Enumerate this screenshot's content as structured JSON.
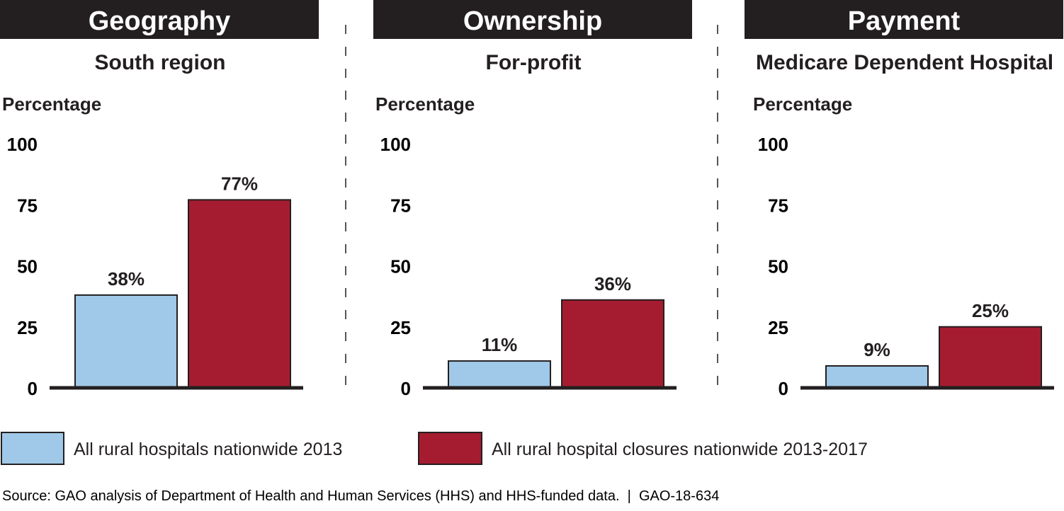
{
  "chart_data": [
    {
      "type": "bar",
      "title": "Geography",
      "subtitle": "South region",
      "ylabel": "Percentage",
      "ylim": [
        0,
        100
      ],
      "yticks": [
        0,
        25,
        50,
        75,
        100
      ],
      "series": [
        {
          "name": "All rural hospitals nationwide 2013",
          "values": [
            38
          ],
          "labels": [
            "38%"
          ]
        },
        {
          "name": "All rural hospital closures nationwide 2013-2017",
          "values": [
            77
          ],
          "labels": [
            "77%"
          ]
        }
      ]
    },
    {
      "type": "bar",
      "title": "Ownership",
      "subtitle": "For-profit",
      "ylabel": "Percentage",
      "ylim": [
        0,
        100
      ],
      "yticks": [
        0,
        25,
        50,
        75,
        100
      ],
      "series": [
        {
          "name": "All rural hospitals nationwide 2013",
          "values": [
            11
          ],
          "labels": [
            "11%"
          ]
        },
        {
          "name": "All rural hospital closures nationwide 2013-2017",
          "values": [
            36
          ],
          "labels": [
            "36%"
          ]
        }
      ]
    },
    {
      "type": "bar",
      "title": "Payment",
      "subtitle": "Medicare Dependent Hospital",
      "ylabel": "Percentage",
      "ylim": [
        0,
        100
      ],
      "yticks": [
        0,
        25,
        50,
        75,
        100
      ],
      "series": [
        {
          "name": "All rural hospitals nationwide 2013",
          "values": [
            9
          ],
          "labels": [
            "9%"
          ]
        },
        {
          "name": "All rural hospital closures nationwide 2013-2017",
          "values": [
            25
          ],
          "labels": [
            "25%"
          ]
        }
      ]
    }
  ],
  "legend": [
    {
      "label": "All rural hospitals nationwide 2013",
      "color": "#a0c8e8"
    },
    {
      "label": "All rural hospital closures nationwide 2013-2017",
      "color": "#a51c30"
    }
  ],
  "source": "Source: GAO analysis of Department of Health and Human Services (HHS) and HHS-funded data.  |  GAO-18-634",
  "colors": {
    "header_bg": "#231f20",
    "axis": "#231f20",
    "blue": "#a0c8e8",
    "red": "#a51c30"
  }
}
